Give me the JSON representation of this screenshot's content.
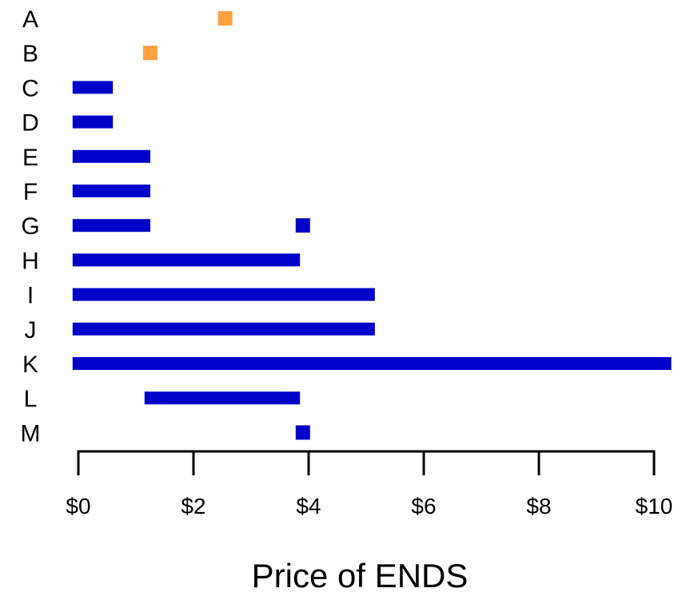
{
  "chart_data": {
    "type": "bar",
    "orientation": "horizontal-range",
    "xlabel": "Price of ENDS",
    "xlim": [
      0,
      10
    ],
    "xticks": [
      0,
      2,
      4,
      6,
      8,
      10
    ],
    "xtick_labels": [
      "$0",
      "$2",
      "$4",
      "$6",
      "$8",
      "$10"
    ],
    "categories": [
      "A",
      "B",
      "C",
      "D",
      "E",
      "F",
      "G",
      "H",
      "I",
      "J",
      "K",
      "L",
      "M"
    ],
    "ranges": [
      {
        "category": "A",
        "segments": [
          {
            "start": 2.55,
            "end": 2.55,
            "kind": "point"
          }
        ]
      },
      {
        "category": "B",
        "segments": [
          {
            "start": 1.25,
            "end": 1.25,
            "kind": "point"
          }
        ]
      },
      {
        "category": "C",
        "segments": [
          {
            "start": -0.1,
            "end": 0.6,
            "kind": "range"
          }
        ]
      },
      {
        "category": "D",
        "segments": [
          {
            "start": -0.1,
            "end": 0.6,
            "kind": "range"
          }
        ]
      },
      {
        "category": "E",
        "segments": [
          {
            "start": -0.1,
            "end": 1.25,
            "kind": "range"
          }
        ]
      },
      {
        "category": "F",
        "segments": [
          {
            "start": -0.1,
            "end": 1.25,
            "kind": "range"
          }
        ]
      },
      {
        "category": "G",
        "segments": [
          {
            "start": -0.1,
            "end": 1.25,
            "kind": "range"
          },
          {
            "start": 3.9,
            "end": 3.9,
            "kind": "point"
          }
        ]
      },
      {
        "category": "H",
        "segments": [
          {
            "start": -0.1,
            "end": 3.85,
            "kind": "range"
          }
        ]
      },
      {
        "category": "I",
        "segments": [
          {
            "start": -0.1,
            "end": 5.15,
            "kind": "range"
          }
        ]
      },
      {
        "category": "J",
        "segments": [
          {
            "start": -0.1,
            "end": 5.15,
            "kind": "range"
          }
        ]
      },
      {
        "category": "K",
        "segments": [
          {
            "start": -0.1,
            "end": 10.3,
            "kind": "range"
          }
        ]
      },
      {
        "category": "L",
        "segments": [
          {
            "start": 1.15,
            "end": 3.85,
            "kind": "range"
          }
        ]
      },
      {
        "category": "M",
        "segments": [
          {
            "start": 3.9,
            "end": 3.9,
            "kind": "point"
          }
        ]
      }
    ],
    "colors": {
      "range": "#0000C8",
      "point_orange": "#FFA040",
      "point_blue": "#0000C8",
      "axis": "#000000"
    },
    "point_color_by_category": {
      "A": "orange",
      "B": "orange",
      "G": "blue",
      "M": "blue"
    },
    "grid": false,
    "legend": "none"
  }
}
